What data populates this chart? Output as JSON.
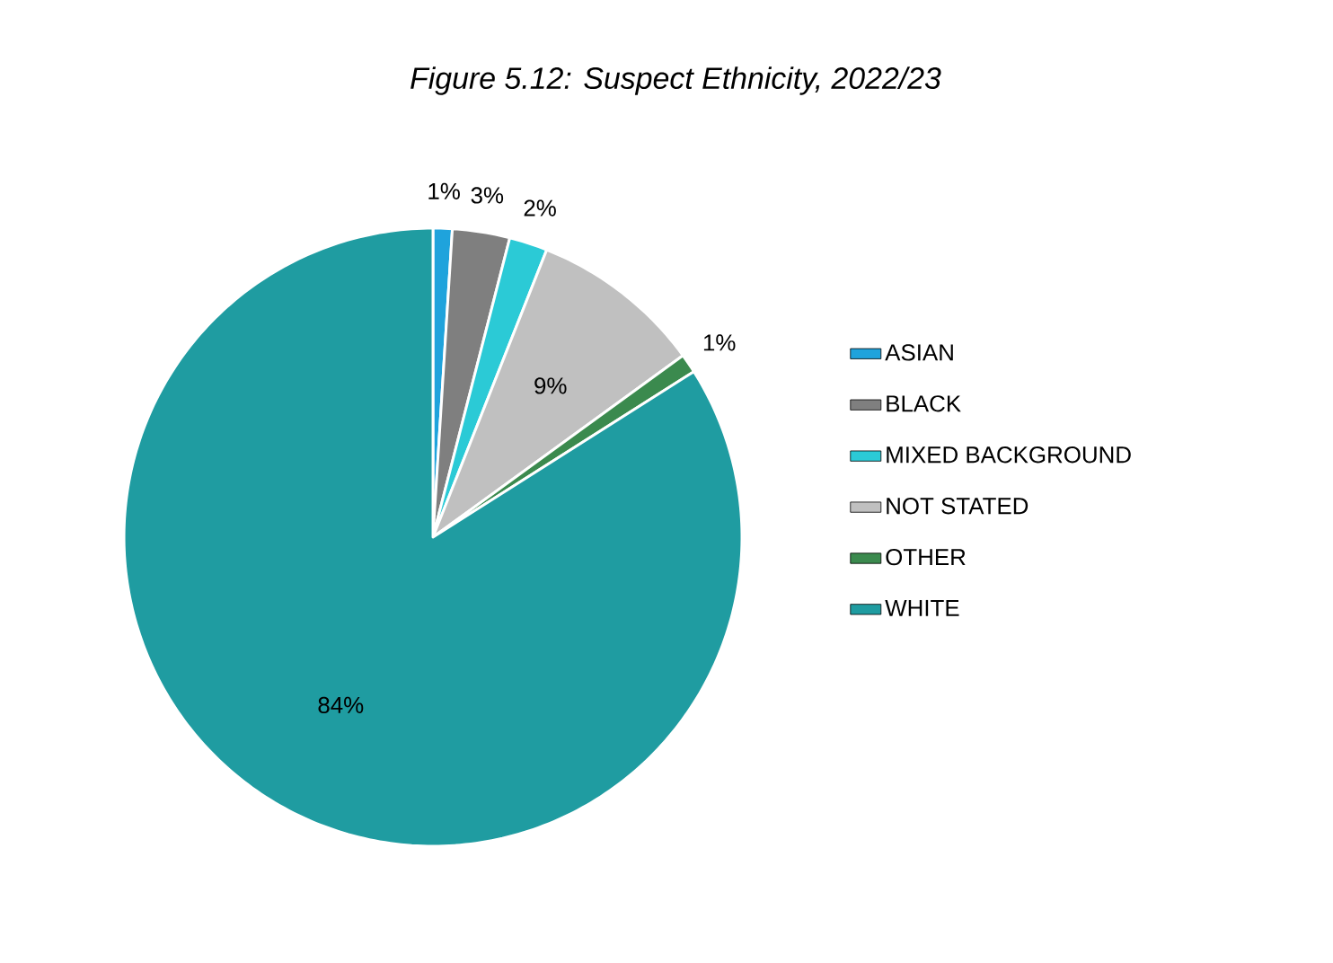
{
  "chart_data": {
    "type": "pie",
    "title": "Figure 5.12: Suspect Ethnicity, 2022/23",
    "categories": [
      "ASIAN",
      "BLACK",
      "MIXED BACKGROUND",
      "NOT STATED",
      "OTHER",
      "WHITE"
    ],
    "values": [
      1,
      3,
      2,
      9,
      1,
      84
    ],
    "colors": [
      "#1fa3dc",
      "#7f7f7f",
      "#2bcad6",
      "#c0c0c0",
      "#3b8a4e",
      "#1f9ca1"
    ],
    "value_labels": [
      "1%",
      "3%",
      "2%",
      "9%",
      "1%",
      "84%"
    ],
    "legend": "right"
  }
}
